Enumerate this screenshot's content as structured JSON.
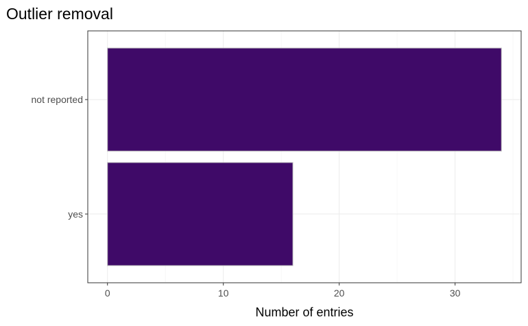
{
  "chart_data": {
    "type": "bar",
    "orientation": "horizontal",
    "title": "Outlier removal",
    "xlabel": "Number of entries",
    "ylabel": "",
    "categories": [
      "not reported",
      "yes"
    ],
    "values": [
      34,
      16
    ],
    "xlim": [
      -1.7,
      35.7
    ],
    "x_ticks": [
      0,
      10,
      20,
      30
    ],
    "grid": true,
    "legend": "none",
    "colors": {
      "bar_fill": "#3f0a68",
      "bar_outline": "#bdbdbd",
      "grid_major": "#ebebeb",
      "grid_minor": "#f5f5f5",
      "panel_border": "#333333",
      "tick_text": "#4d4d4d"
    }
  }
}
